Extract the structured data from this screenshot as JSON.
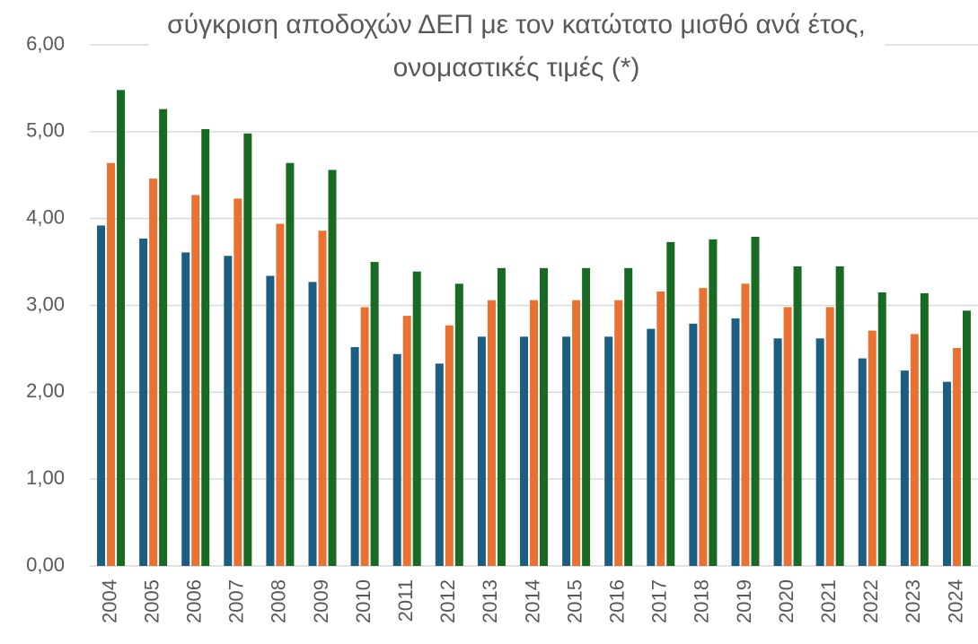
{
  "chart_data": {
    "type": "bar",
    "title": "σύγκριση αποδοχών ΔΕΠ με τον κατώτατο μισθό ανά έτος, ονομαστικές τιμές (*)",
    "categories": [
      "2004",
      "2005",
      "2006",
      "2007",
      "2008",
      "2009",
      "2010",
      "2011",
      "2012",
      "2013",
      "2014",
      "2015",
      "2016",
      "2017",
      "2018",
      "2019",
      "2020",
      "2021",
      "2022",
      "2023",
      "2024"
    ],
    "series": [
      {
        "color": "#1b5e82",
        "values": [
          3.92,
          3.77,
          3.61,
          3.57,
          3.34,
          3.27,
          2.52,
          2.44,
          2.33,
          2.64,
          2.64,
          2.64,
          2.64,
          2.73,
          2.79,
          2.85,
          2.62,
          2.62,
          2.39,
          2.25,
          2.12
        ]
      },
      {
        "color": "#e97132",
        "values": [
          4.64,
          4.46,
          4.27,
          4.23,
          3.94,
          3.86,
          2.98,
          2.88,
          2.77,
          3.06,
          3.06,
          3.06,
          3.06,
          3.16,
          3.2,
          3.25,
          2.98,
          2.98,
          2.71,
          2.67,
          2.51
        ]
      },
      {
        "color": "#196b24",
        "values": [
          5.48,
          5.26,
          5.03,
          4.98,
          4.64,
          4.56,
          3.5,
          3.39,
          3.25,
          3.43,
          3.43,
          3.43,
          3.43,
          3.73,
          3.76,
          3.79,
          3.45,
          3.45,
          3.15,
          3.14,
          2.94
        ]
      }
    ],
    "ylim": [
      0,
      6
    ],
    "yticks": [
      {
        "value": 0,
        "label": "0,00"
      },
      {
        "value": 1,
        "label": "1,00"
      },
      {
        "value": 2,
        "label": "2,00"
      },
      {
        "value": 3,
        "label": "3,00"
      },
      {
        "value": 4,
        "label": "4,00"
      },
      {
        "value": 5,
        "label": "5,00"
      },
      {
        "value": 6,
        "label": "6,00"
      }
    ],
    "grid": true
  }
}
